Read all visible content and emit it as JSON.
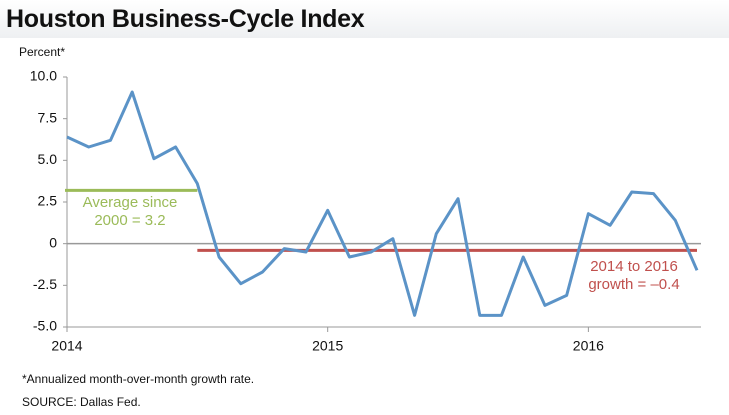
{
  "chart_data": {
    "type": "line",
    "title": "Houston Business-Cycle Index",
    "y_label": "Percent*",
    "footnote": "*Annualized month-over-month growth rate.",
    "source": "SOURCE: Dallas Fed.",
    "categories": [
      "2014",
      null,
      null,
      null,
      null,
      null,
      null,
      null,
      null,
      null,
      null,
      null,
      "2015",
      null,
      null,
      null,
      null,
      null,
      null,
      null,
      null,
      null,
      null,
      null,
      "2016",
      null,
      null,
      null,
      null,
      null
    ],
    "values": [
      6.4,
      5.8,
      6.2,
      9.1,
      5.1,
      5.8,
      3.6,
      -0.8,
      -2.4,
      -1.7,
      -0.3,
      -0.5,
      2.0,
      -0.8,
      -0.5,
      0.3,
      -4.3,
      0.6,
      2.7,
      -4.3,
      -4.3,
      -0.8,
      -3.7,
      -3.1,
      1.8,
      1.1,
      3.1,
      3.0,
      1.4,
      -1.6
    ],
    "color": "#5b93c7",
    "ylim": [
      -5,
      10
    ],
    "yticks": [
      {
        "value": 10,
        "label": "10.0"
      },
      7.5,
      {
        "value": 5,
        "label": "5.0"
      },
      2.5,
      0,
      -2.5,
      {
        "value": -5,
        "label": "-5.0"
      }
    ],
    "reference_lines": [
      {
        "label": "Average since 2000 = 3.2",
        "value": 3.2,
        "color": "#9bbb59"
      },
      {
        "label": "2014 to 2016 growth = –0.4",
        "value": -0.4,
        "color": "#c0504d"
      }
    ]
  }
}
